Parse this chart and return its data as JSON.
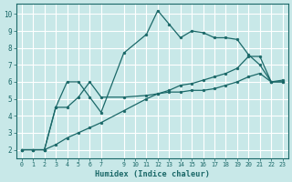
{
  "xlabel": "Humidex (Indice chaleur)",
  "bg_color": "#c8e8e8",
  "grid_color": "#ffffff",
  "line_color": "#1a6868",
  "xlim_min": -0.5,
  "xlim_max": 23.5,
  "ylim_min": 1.5,
  "ylim_max": 10.6,
  "xtick_pos": [
    0,
    1,
    2,
    3,
    4,
    5,
    6,
    7,
    9,
    10,
    11,
    12,
    13,
    14,
    15,
    16,
    17,
    18,
    19,
    20,
    21,
    22,
    23
  ],
  "xtick_labels": [
    "0",
    "1",
    "2",
    "3",
    "4",
    "5",
    "6",
    "7",
    "9",
    "10",
    "11",
    "12",
    "13",
    "14",
    "15",
    "16",
    "17",
    "18",
    "19",
    "20",
    "21",
    "22",
    "23"
  ],
  "ytick_pos": [
    2,
    3,
    4,
    5,
    6,
    7,
    8,
    9,
    10
  ],
  "ytick_labels": [
    "2",
    "3",
    "4",
    "5",
    "6",
    "7",
    "8",
    "9",
    "10"
  ],
  "line1_x": [
    0,
    1,
    2,
    3,
    4,
    5,
    6,
    7,
    9,
    11,
    12,
    13,
    14,
    15,
    16,
    17,
    18,
    19,
    20,
    21,
    22,
    23
  ],
  "line1_y": [
    2,
    2,
    2,
    4.5,
    6.0,
    6.0,
    5.1,
    4.2,
    7.7,
    8.8,
    10.2,
    9.4,
    8.6,
    9.0,
    8.9,
    8.6,
    8.6,
    8.5,
    7.6,
    7.0,
    6.0,
    6.1
  ],
  "line2_x": [
    0,
    1,
    2,
    3,
    4,
    5,
    6,
    7,
    9,
    11,
    12,
    13,
    14,
    15,
    16,
    17,
    18,
    19,
    20,
    21,
    22,
    23
  ],
  "line2_y": [
    2,
    2,
    2,
    4.5,
    4.5,
    5.1,
    6.0,
    5.1,
    5.1,
    5.2,
    5.3,
    5.4,
    5.4,
    5.5,
    5.5,
    5.6,
    5.8,
    6.0,
    6.3,
    6.5,
    6.0,
    6.0
  ],
  "line3_x": [
    0,
    1,
    2,
    3,
    4,
    5,
    6,
    7,
    9,
    11,
    12,
    13,
    14,
    15,
    16,
    17,
    18,
    19,
    20,
    21,
    22,
    23
  ],
  "line3_y": [
    2,
    2,
    2,
    2.3,
    2.7,
    3.0,
    3.3,
    3.6,
    4.3,
    5.0,
    5.3,
    5.5,
    5.8,
    5.9,
    6.1,
    6.3,
    6.5,
    6.8,
    7.5,
    7.5,
    6.0,
    6.0
  ]
}
